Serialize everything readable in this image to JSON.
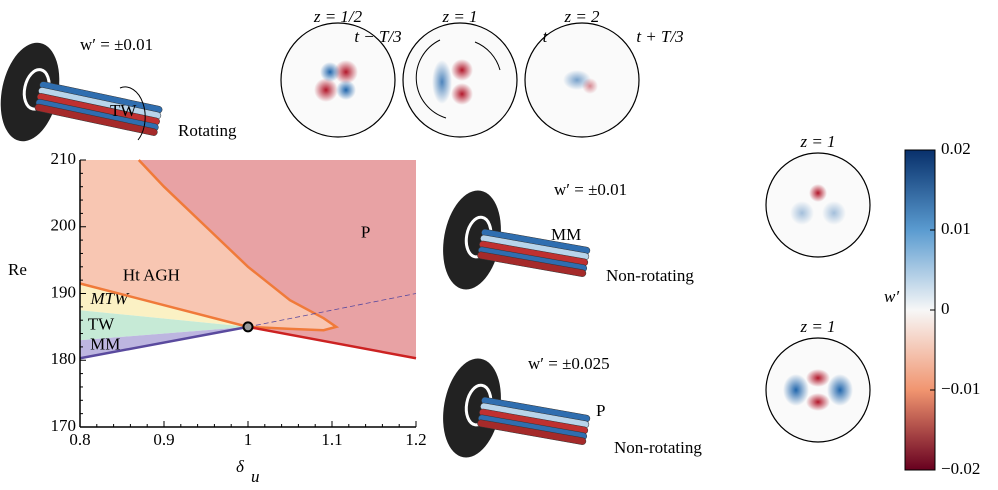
{
  "chart_data": {
    "type": "region",
    "xlabel": "δ",
    "xlabel_sub": "u",
    "ylabel": "Re",
    "xlim": [
      0.8,
      1.2
    ],
    "ylim": [
      170,
      210
    ],
    "xticks": [
      0.8,
      0.9,
      1,
      1.1,
      1.2
    ],
    "yticks": [
      170,
      180,
      190,
      200,
      210
    ],
    "regions": [
      {
        "name": "P",
        "color": "#e8a2a4",
        "x": [
          0.87,
          1.2,
          1.2,
          1.0,
          1.05,
          1.09,
          1.105,
          1.09,
          1.05,
          1.0,
          0.95,
          0.9
        ],
        "y": [
          210,
          210,
          180.3,
          185,
          184.7,
          184.5,
          185,
          186.3,
          189,
          194,
          200,
          206
        ]
      },
      {
        "name": "Ht AGH",
        "color": "#f8c6b2",
        "x": [
          0.8,
          0.87,
          0.9,
          0.95,
          1.0,
          1.05,
          1.09,
          1.105,
          1.09,
          1.05,
          1.0,
          0.8
        ],
        "y": [
          210,
          210,
          206,
          200,
          194,
          189,
          186.3,
          185,
          184.5,
          184.7,
          185,
          191.5
        ]
      },
      {
        "name": "MTW",
        "color": "#fbf1c4",
        "x": [
          0.8,
          1.0,
          0.8
        ],
        "y": [
          191.5,
          185,
          187.5
        ]
      },
      {
        "name": "TW",
        "color": "#c6ead6",
        "x": [
          0.8,
          1.0,
          0.8
        ],
        "y": [
          187.5,
          185,
          183
        ]
      },
      {
        "name": "MM",
        "color": "#bdb6e0",
        "x": [
          0.8,
          1.0,
          0.8
        ],
        "y": [
          183,
          185,
          180.3
        ]
      }
    ],
    "lines": [
      {
        "color": "#f07a3a",
        "width": 2.5,
        "x": [
          0.87,
          0.9,
          0.95,
          1.0,
          1.05,
          1.09,
          1.105,
          1.09,
          1.05,
          1.0
        ],
        "y": [
          210,
          206,
          200,
          194,
          189,
          186.3,
          185,
          184.5,
          184.7,
          185
        ]
      },
      {
        "color": "#f07a3a",
        "width": 2.5,
        "x": [
          0.8,
          1.0
        ],
        "y": [
          191.5,
          185
        ]
      },
      {
        "color": "#cc2222",
        "width": 2.5,
        "x": [
          1.0,
          1.2
        ],
        "y": [
          185,
          180.3
        ]
      },
      {
        "color": "#5a4a9e",
        "width": 2.5,
        "x": [
          0.8,
          1.0
        ],
        "y": [
          180.3,
          185
        ]
      },
      {
        "color": "#5a4a9e",
        "width": 0.8,
        "dash": true,
        "x": [
          1.0,
          1.2
        ],
        "y": [
          185,
          190
        ]
      }
    ],
    "point": {
      "x": 1,
      "y": 185
    },
    "colorbar": {
      "label": "w′",
      "lim": [
        -0.02,
        0.02
      ],
      "ticks": [
        0.02,
        0.01,
        0,
        {
          "value": -0.01,
          "label": "−0.01"
        },
        {
          "value": -0.02,
          "label": "−0.02"
        }
      ]
    }
  },
  "top_panels": [
    {
      "z": "z = 1/2",
      "t": "t − T/3"
    },
    {
      "z": "z = 1",
      "t": "t"
    },
    {
      "z": "z = 2",
      "t": "t + T/3"
    }
  ],
  "rotating": {
    "amp": "w′ = ±0.01",
    "label": "TW",
    "motion": "Rotating"
  },
  "mm": {
    "amp": "w′ = ±0.01",
    "label": "MM",
    "motion": "Non-rotating"
  },
  "p": {
    "amp": "w′ = ±0.025",
    "label": "P",
    "motion": "Non-rotating"
  },
  "right_panels": [
    "z = 1",
    "z = 1"
  ]
}
